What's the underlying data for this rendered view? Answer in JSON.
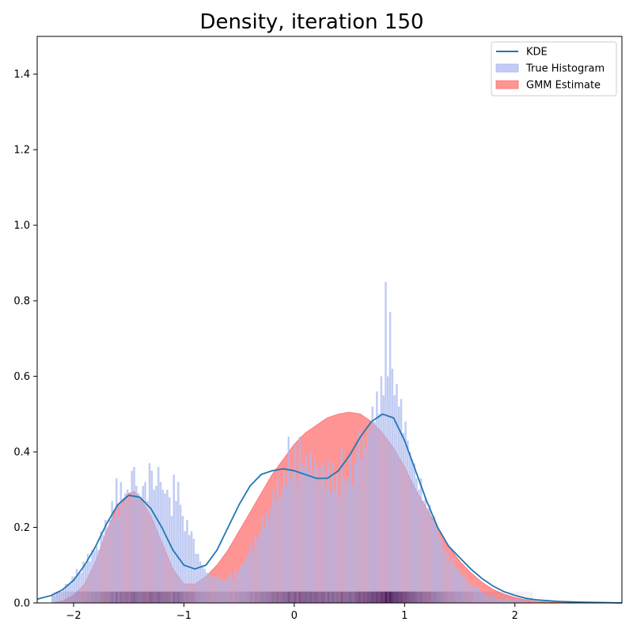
{
  "chart_data": {
    "type": "area",
    "title": "Density, iteration 150",
    "xlabel": "",
    "ylabel": "",
    "xlim": [
      -2.33,
      2.97
    ],
    "ylim": [
      0,
      1.5
    ],
    "xticks": [
      -2,
      -1,
      0,
      1,
      2
    ],
    "yticks": [
      0.0,
      0.2,
      0.4,
      0.6,
      0.8,
      1.0,
      1.2,
      1.4
    ],
    "legend_position": "top-right",
    "grid": false,
    "series": [
      {
        "name": "KDE",
        "kind": "line",
        "color": "#1f77b4",
        "x": [
          -2.33,
          -2.2,
          -2.1,
          -2.0,
          -1.9,
          -1.8,
          -1.7,
          -1.6,
          -1.5,
          -1.4,
          -1.3,
          -1.2,
          -1.1,
          -1.0,
          -0.9,
          -0.8,
          -0.7,
          -0.6,
          -0.5,
          -0.4,
          -0.3,
          -0.2,
          -0.1,
          0.0,
          0.1,
          0.2,
          0.3,
          0.4,
          0.5,
          0.6,
          0.7,
          0.8,
          0.9,
          1.0,
          1.1,
          1.2,
          1.3,
          1.4,
          1.5,
          1.6,
          1.7,
          1.8,
          1.9,
          2.0,
          2.1,
          2.2,
          2.4,
          2.6,
          2.8,
          2.97
        ],
        "y": [
          0.01,
          0.02,
          0.035,
          0.06,
          0.1,
          0.15,
          0.21,
          0.26,
          0.285,
          0.28,
          0.25,
          0.2,
          0.14,
          0.1,
          0.09,
          0.1,
          0.14,
          0.2,
          0.26,
          0.31,
          0.34,
          0.35,
          0.355,
          0.35,
          0.34,
          0.33,
          0.33,
          0.35,
          0.39,
          0.44,
          0.48,
          0.5,
          0.49,
          0.43,
          0.35,
          0.27,
          0.2,
          0.15,
          0.12,
          0.09,
          0.065,
          0.045,
          0.03,
          0.02,
          0.012,
          0.008,
          0.004,
          0.002,
          0.001,
          0.0
        ]
      },
      {
        "name": "True Histogram",
        "kind": "histogram",
        "color": "#aab8ee",
        "bin_start": -2.2,
        "bin_width": 0.02,
        "values": [
          0.02,
          0.02,
          0.03,
          0.03,
          0.03,
          0.04,
          0.05,
          0.05,
          0.05,
          0.07,
          0.07,
          0.09,
          0.08,
          0.08,
          0.11,
          0.1,
          0.13,
          0.11,
          0.14,
          0.14,
          0.15,
          0.14,
          0.19,
          0.18,
          0.22,
          0.2,
          0.22,
          0.27,
          0.22,
          0.33,
          0.23,
          0.32,
          0.26,
          0.29,
          0.3,
          0.27,
          0.35,
          0.36,
          0.31,
          0.29,
          0.28,
          0.31,
          0.32,
          0.27,
          0.37,
          0.35,
          0.3,
          0.31,
          0.36,
          0.32,
          0.3,
          0.29,
          0.3,
          0.28,
          0.23,
          0.34,
          0.27,
          0.32,
          0.26,
          0.23,
          0.19,
          0.22,
          0.18,
          0.19,
          0.17,
          0.13,
          0.13,
          0.11,
          0.1,
          0.09,
          0.08,
          0.08,
          0.07,
          0.07,
          0.07,
          0.07,
          0.06,
          0.06,
          0.06,
          0.06,
          0.07,
          0.08,
          0.06,
          0.09,
          0.08,
          0.1,
          0.1,
          0.11,
          0.12,
          0.13,
          0.16,
          0.14,
          0.18,
          0.17,
          0.19,
          0.23,
          0.2,
          0.24,
          0.22,
          0.25,
          0.3,
          0.27,
          0.33,
          0.28,
          0.3,
          0.35,
          0.31,
          0.44,
          0.33,
          0.35,
          0.42,
          0.32,
          0.44,
          0.37,
          0.36,
          0.39,
          0.35,
          0.4,
          0.34,
          0.38,
          0.36,
          0.32,
          0.37,
          0.36,
          0.3,
          0.38,
          0.29,
          0.37,
          0.3,
          0.34,
          0.28,
          0.41,
          0.33,
          0.32,
          0.33,
          0.39,
          0.31,
          0.37,
          0.4,
          0.46,
          0.38,
          0.44,
          0.41,
          0.47,
          0.45,
          0.52,
          0.48,
          0.56,
          0.5,
          0.6,
          0.55,
          0.85,
          0.6,
          0.77,
          0.62,
          0.55,
          0.58,
          0.52,
          0.54,
          0.45,
          0.48,
          0.43,
          0.4,
          0.38,
          0.37,
          0.33,
          0.3,
          0.33,
          0.27,
          0.28,
          0.25,
          0.26,
          0.22,
          0.23,
          0.2,
          0.18,
          0.17,
          0.15,
          0.14,
          0.13,
          0.11,
          0.12,
          0.1,
          0.09,
          0.09,
          0.08,
          0.07,
          0.07,
          0.06,
          0.05,
          0.05,
          0.04,
          0.04,
          0.04,
          0.03,
          0.03,
          0.02,
          0.02,
          0.02,
          0.02,
          0.02,
          0.01,
          0.01,
          0.01,
          0.01,
          0.01,
          0.01,
          0.01,
          0.01,
          0.01,
          0.01,
          0.01,
          0.0,
          0.01,
          0.0,
          0.01,
          0.0,
          0.01
        ]
      },
      {
        "name": "GMM Estimate",
        "kind": "area",
        "color": "#ff6b6b",
        "x": [
          -2.33,
          -2.2,
          -2.1,
          -2.0,
          -1.9,
          -1.8,
          -1.7,
          -1.6,
          -1.5,
          -1.45,
          -1.4,
          -1.3,
          -1.2,
          -1.1,
          -1.0,
          -0.9,
          -0.8,
          -0.7,
          -0.6,
          -0.5,
          -0.4,
          -0.3,
          -0.2,
          -0.1,
          0.0,
          0.1,
          0.2,
          0.3,
          0.4,
          0.5,
          0.6,
          0.7,
          0.8,
          0.9,
          1.0,
          1.1,
          1.2,
          1.3,
          1.4,
          1.5,
          1.6,
          1.7,
          1.8,
          1.9,
          2.0,
          2.1,
          2.2,
          2.4,
          2.6,
          2.8,
          2.97
        ],
        "y": [
          0.0,
          0.0,
          0.005,
          0.02,
          0.05,
          0.11,
          0.19,
          0.26,
          0.29,
          0.295,
          0.28,
          0.23,
          0.16,
          0.09,
          0.05,
          0.05,
          0.07,
          0.1,
          0.14,
          0.19,
          0.24,
          0.29,
          0.34,
          0.38,
          0.42,
          0.45,
          0.47,
          0.49,
          0.5,
          0.505,
          0.5,
          0.48,
          0.45,
          0.41,
          0.36,
          0.3,
          0.25,
          0.2,
          0.15,
          0.11,
          0.08,
          0.055,
          0.036,
          0.023,
          0.014,
          0.008,
          0.004,
          0.001,
          0.0,
          0.0,
          0.0
        ]
      }
    ]
  }
}
